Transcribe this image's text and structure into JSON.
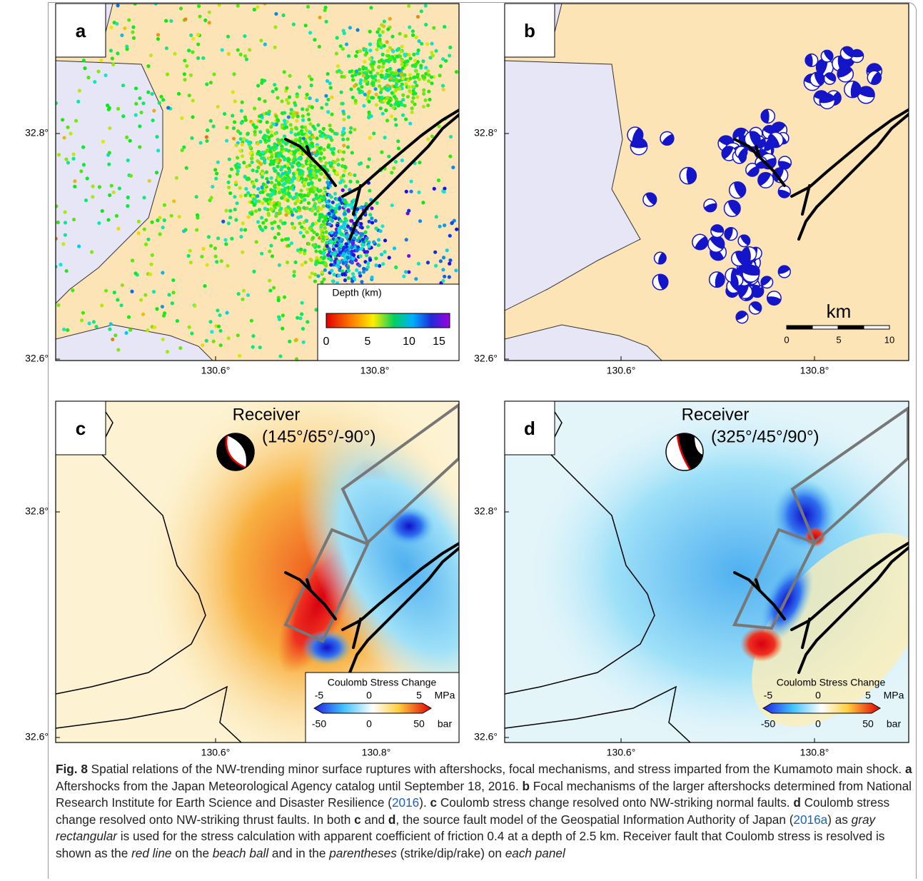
{
  "panels": [
    {
      "label": "a",
      "y_labels": [
        "32.8°",
        "32.6°"
      ],
      "x_labels": [
        "130.6°",
        "130.8°"
      ],
      "legend": {
        "title": "Depth (km)",
        "ticks": [
          "0",
          "5",
          "10",
          "15"
        ]
      }
    },
    {
      "label": "b",
      "y_labels": [
        "32.8°",
        "32.6°"
      ],
      "x_labels": [
        "130.6°",
        "130.8°"
      ],
      "scale": {
        "unit": "km",
        "ticks": [
          "0",
          "5",
          "10"
        ]
      }
    },
    {
      "label": "c",
      "y_labels": [
        "32.8°",
        "32.6°"
      ],
      "x_labels": [
        "130.6°",
        "130.8°"
      ],
      "receiver": {
        "title": "Receiver",
        "params": "(145°/65°/-90°)"
      },
      "colorbar": {
        "title": "Coulomb Stress Change",
        "top_ticks": [
          "-5",
          "0",
          "5"
        ],
        "top_unit": "MPa",
        "bottom_ticks": [
          "-50",
          "0",
          "50"
        ],
        "bottom_unit": "bar"
      }
    },
    {
      "label": "d",
      "y_labels": [
        "32.8°",
        "32.6°"
      ],
      "x_labels": [
        "130.6°",
        "130.8°"
      ],
      "receiver": {
        "title": "Receiver",
        "params": "(325°/45°/90°)"
      },
      "colorbar": {
        "title": "Coulomb Stress Change",
        "top_ticks": [
          "-5",
          "0",
          "5"
        ],
        "top_unit": "MPa",
        "bottom_ticks": [
          "-50",
          "0",
          "50"
        ],
        "bottom_unit": "bar"
      }
    }
  ],
  "caption": [
    {
      "text": "Fig. 8",
      "style": "bold"
    },
    {
      "text": " Spatial relations of the NW-trending minor surface ruptures with aftershocks, focal mechanisms, and stress imparted from the Kumamoto main shock. ",
      "style": "plain"
    },
    {
      "text": "a",
      "style": "bold"
    },
    {
      "text": " Aftershocks from the Japan Meteorological Agency catalog until September 18, 2016. ",
      "style": "plain"
    },
    {
      "text": "b",
      "style": "bold"
    },
    {
      "text": " Focal mechanisms of the larger aftershocks determined from National Research Institute for Earth Science and Disaster Resilience (",
      "style": "plain"
    },
    {
      "text": "2016",
      "style": "link"
    },
    {
      "text": "). ",
      "style": "plain"
    },
    {
      "text": "c",
      "style": "bold"
    },
    {
      "text": " Coulomb stress change resolved onto NW-striking normal faults. ",
      "style": "plain"
    },
    {
      "text": "d",
      "style": "bold"
    },
    {
      "text": " Coulomb stress change resolved onto NW-striking thrust faults. In both ",
      "style": "plain"
    },
    {
      "text": "c",
      "style": "bold"
    },
    {
      "text": " and ",
      "style": "plain"
    },
    {
      "text": "d",
      "style": "bold"
    },
    {
      "text": ", the source fault model of the Geospatial Information Authority of Japan (",
      "style": "plain"
    },
    {
      "text": "2016a",
      "style": "link"
    },
    {
      "text": ") as ",
      "style": "plain"
    },
    {
      "text": "gray rectangular",
      "style": "italic"
    },
    {
      "text": " is used for the stress calculation with apparent coefficient of friction 0.4 at a depth of 2.5 km. Receiver fault that Coulomb stress is resolved is shown as the ",
      "style": "plain"
    },
    {
      "text": "red line",
      "style": "italic"
    },
    {
      "text": " on the ",
      "style": "plain"
    },
    {
      "text": "beach ball",
      "style": "italic"
    },
    {
      "text": " and in the ",
      "style": "plain"
    },
    {
      "text": "parentheses",
      "style": "italic"
    },
    {
      "text": " (strike/dip/rake) on ",
      "style": "plain"
    },
    {
      "text": "each panel",
      "style": "italic"
    }
  ]
}
